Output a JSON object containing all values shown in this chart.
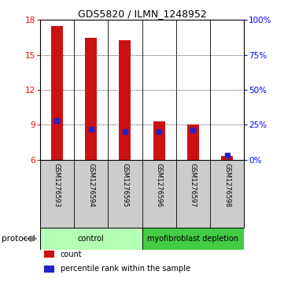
{
  "title": "GDS5820 / ILMN_1248952",
  "samples": [
    "GSM1276593",
    "GSM1276594",
    "GSM1276595",
    "GSM1276596",
    "GSM1276597",
    "GSM1276598"
  ],
  "counts": [
    17.5,
    16.5,
    16.3,
    9.3,
    9.0,
    6.3
  ],
  "percentile_ranks": [
    28,
    22,
    20,
    20,
    21,
    3
  ],
  "ylim_left": [
    6,
    18
  ],
  "ylim_right": [
    0,
    100
  ],
  "yticks_left": [
    6,
    9,
    12,
    15,
    18
  ],
  "yticks_right": [
    0,
    25,
    50,
    75,
    100
  ],
  "ytick_right_labels": [
    "0%",
    "25%",
    "50%",
    "75%",
    "100%"
  ],
  "bar_color": "#cc1111",
  "marker_color": "#2222cc",
  "groups": [
    {
      "label": "control",
      "samples": [
        0,
        1,
        2
      ],
      "color": "#b3ffb3"
    },
    {
      "label": "myofibroblast depletion",
      "samples": [
        3,
        4,
        5
      ],
      "color": "#44cc44"
    }
  ],
  "protocol_label": "protocol",
  "legend_items": [
    {
      "color": "#cc1111",
      "label": "count"
    },
    {
      "color": "#2222cc",
      "label": "percentile rank within the sample"
    }
  ],
  "bg_color": "#ffffff",
  "sample_bg": "#cccccc"
}
